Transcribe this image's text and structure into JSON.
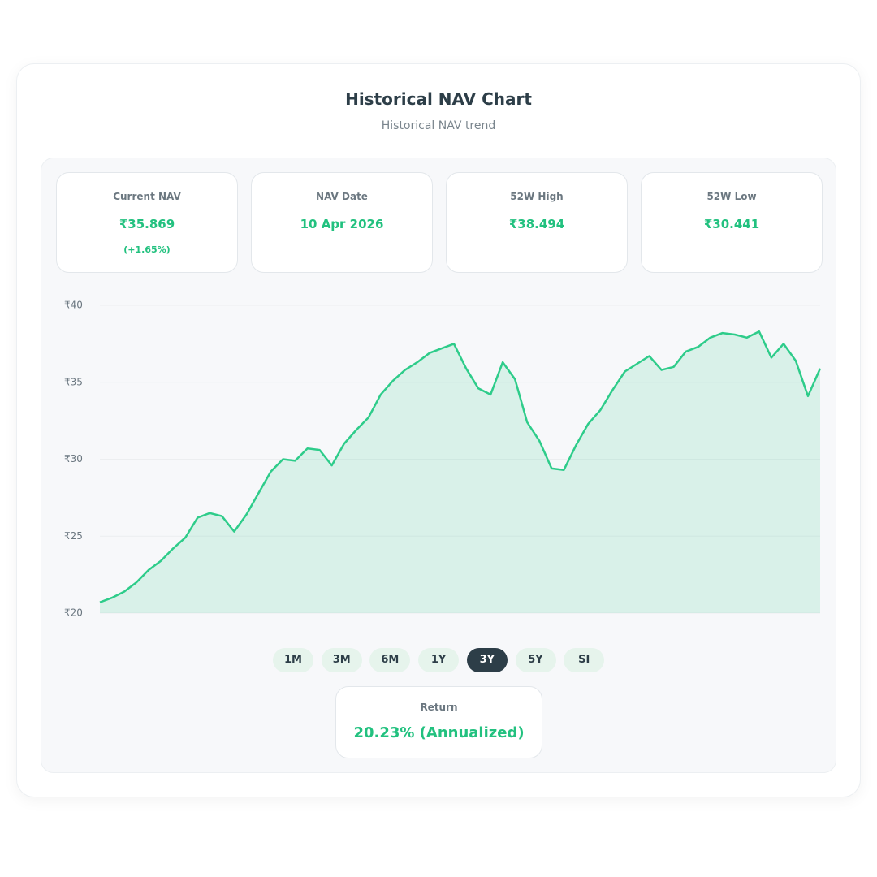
{
  "header": {
    "title": "Historical NAV Chart",
    "subtitle": "Historical NAV trend"
  },
  "stats": [
    {
      "label": "Current NAV",
      "value": "₹35.869",
      "change": "(+1.65%)"
    },
    {
      "label": "NAV Date",
      "value": "10 Apr 2026"
    },
    {
      "label": "52W High",
      "value": "₹38.494"
    },
    {
      "label": "52W Low",
      "value": "₹30.441"
    }
  ],
  "chart_data": {
    "type": "area",
    "color": "#2ecc8a",
    "grid": true,
    "values": [
      20.7,
      21.0,
      21.4,
      22.0,
      22.8,
      23.4,
      24.2,
      24.9,
      26.2,
      26.5,
      26.3,
      25.3,
      26.4,
      27.8,
      29.2,
      30.0,
      29.9,
      30.7,
      30.6,
      29.6,
      31.0,
      31.9,
      32.7,
      34.2,
      35.1,
      35.8,
      36.3,
      36.9,
      37.2,
      37.5,
      35.9,
      34.6,
      34.2,
      36.3,
      35.2,
      32.4,
      31.2,
      29.4,
      29.3,
      30.9,
      32.3,
      33.2,
      34.5,
      35.7,
      36.2,
      36.7,
      35.8,
      36.0,
      37.0,
      37.3,
      37.9,
      38.2,
      38.1,
      37.9,
      38.3,
      36.6,
      37.5,
      36.4,
      34.1,
      35.9
    ],
    "ylim": [
      20,
      40
    ],
    "yticks": [
      {
        "value": 20,
        "label": "₹20"
      },
      {
        "value": 25,
        "label": "₹25"
      },
      {
        "value": 30,
        "label": "₹30"
      },
      {
        "value": 35,
        "label": "₹35"
      },
      {
        "value": 40,
        "label": "₹40"
      }
    ]
  },
  "ranges": [
    "1M",
    "3M",
    "6M",
    "1Y",
    "3Y",
    "5Y",
    "SI"
  ],
  "active_range": "3Y",
  "return": {
    "label": "Return",
    "value": "20.23% (Annualized)"
  }
}
